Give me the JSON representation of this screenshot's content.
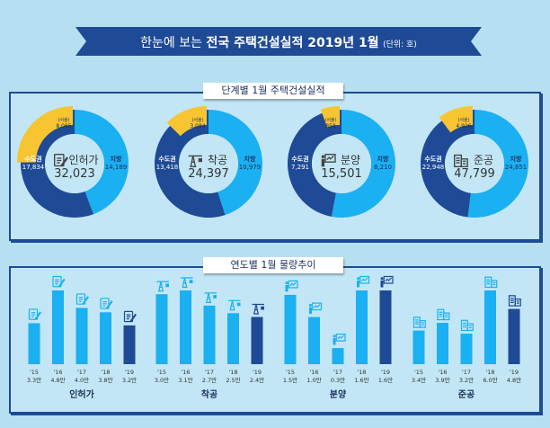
{
  "title": {
    "prefix": "한눈에 보는",
    "main": "전국 주택건설실적 2019년 1월",
    "unit": "(단위: 호)"
  },
  "colors": {
    "banner": "#1e4a96",
    "local": "#1ab0f2",
    "capital": "#1e4a96",
    "seoul": "#f7c531",
    "bar": "#1ab0f2",
    "bar_current": "#1e4a96"
  },
  "chart_data": [
    {
      "type": "pie",
      "title": "단계별 1월 주택건설실적",
      "donuts": [
        {
          "name": "인허가",
          "icon": "permit-document-icon",
          "total": "32,023",
          "capital_label": "수도권",
          "capital": 17834,
          "capital_text": "17,834",
          "local_label": "지방",
          "local": 14189,
          "local_text": "14,189",
          "seoul_label": "(서울)",
          "seoul": 8065,
          "seoul_text": "8,065"
        },
        {
          "name": "착공",
          "icon": "crane-icon",
          "total": "24,397",
          "capital_label": "수도권",
          "capital": 13418,
          "capital_text": "13,418",
          "local_label": "지방",
          "local": 10979,
          "local_text": "10,979",
          "seoul_label": "(서울)",
          "seoul": 3084,
          "seoul_text": "3,084"
        },
        {
          "name": "분양",
          "icon": "presentation-icon",
          "total": "15,501",
          "capital_label": "수도권",
          "capital": 7291,
          "capital_text": "7,291",
          "local_label": "지방",
          "local": 8210,
          "local_text": "8,210",
          "seoul_label": "(서울)",
          "seoul": 858,
          "seoul_text": "858"
        },
        {
          "name": "준공",
          "icon": "building-icon",
          "total": "47,799",
          "capital_label": "수도권",
          "capital": 22948,
          "capital_text": "22,948",
          "local_label": "지방",
          "local": 24851,
          "local_text": "24,851",
          "seoul_label": "(서울)",
          "seoul": 4926,
          "seoul_text": "4,926"
        }
      ]
    },
    {
      "type": "bar",
      "title": "연도별 1월 물량추이",
      "categories": [
        "'15",
        "'16",
        "'17",
        "'18",
        "'19"
      ],
      "groups": [
        {
          "name": "인허가",
          "icon": "permit-document-icon",
          "values": [
            3.3,
            4.8,
            4.0,
            3.8,
            3.2
          ],
          "labels": [
            "3.3만",
            "4.8만",
            "4.0만",
            "3.8만",
            "3.2만"
          ]
        },
        {
          "name": "착공",
          "icon": "crane-icon",
          "values": [
            3.0,
            3.1,
            2.7,
            2.5,
            2.4
          ],
          "labels": [
            "3.0만",
            "3.1만",
            "2.7만",
            "2.5만",
            "2.4만"
          ]
        },
        {
          "name": "분양",
          "icon": "presentation-icon",
          "values": [
            1.5,
            1.0,
            0.3,
            1.6,
            1.6
          ],
          "labels": [
            "1.5만",
            "1.0만",
            "0.3만",
            "1.6만",
            "1.6만"
          ]
        },
        {
          "name": "준공",
          "icon": "building-icon",
          "values": [
            3.4,
            3.9,
            3.2,
            6.0,
            4.8
          ],
          "labels": [
            "3.4만",
            "3.9만",
            "3.2만",
            "6.0만",
            "4.8만"
          ]
        }
      ]
    }
  ]
}
